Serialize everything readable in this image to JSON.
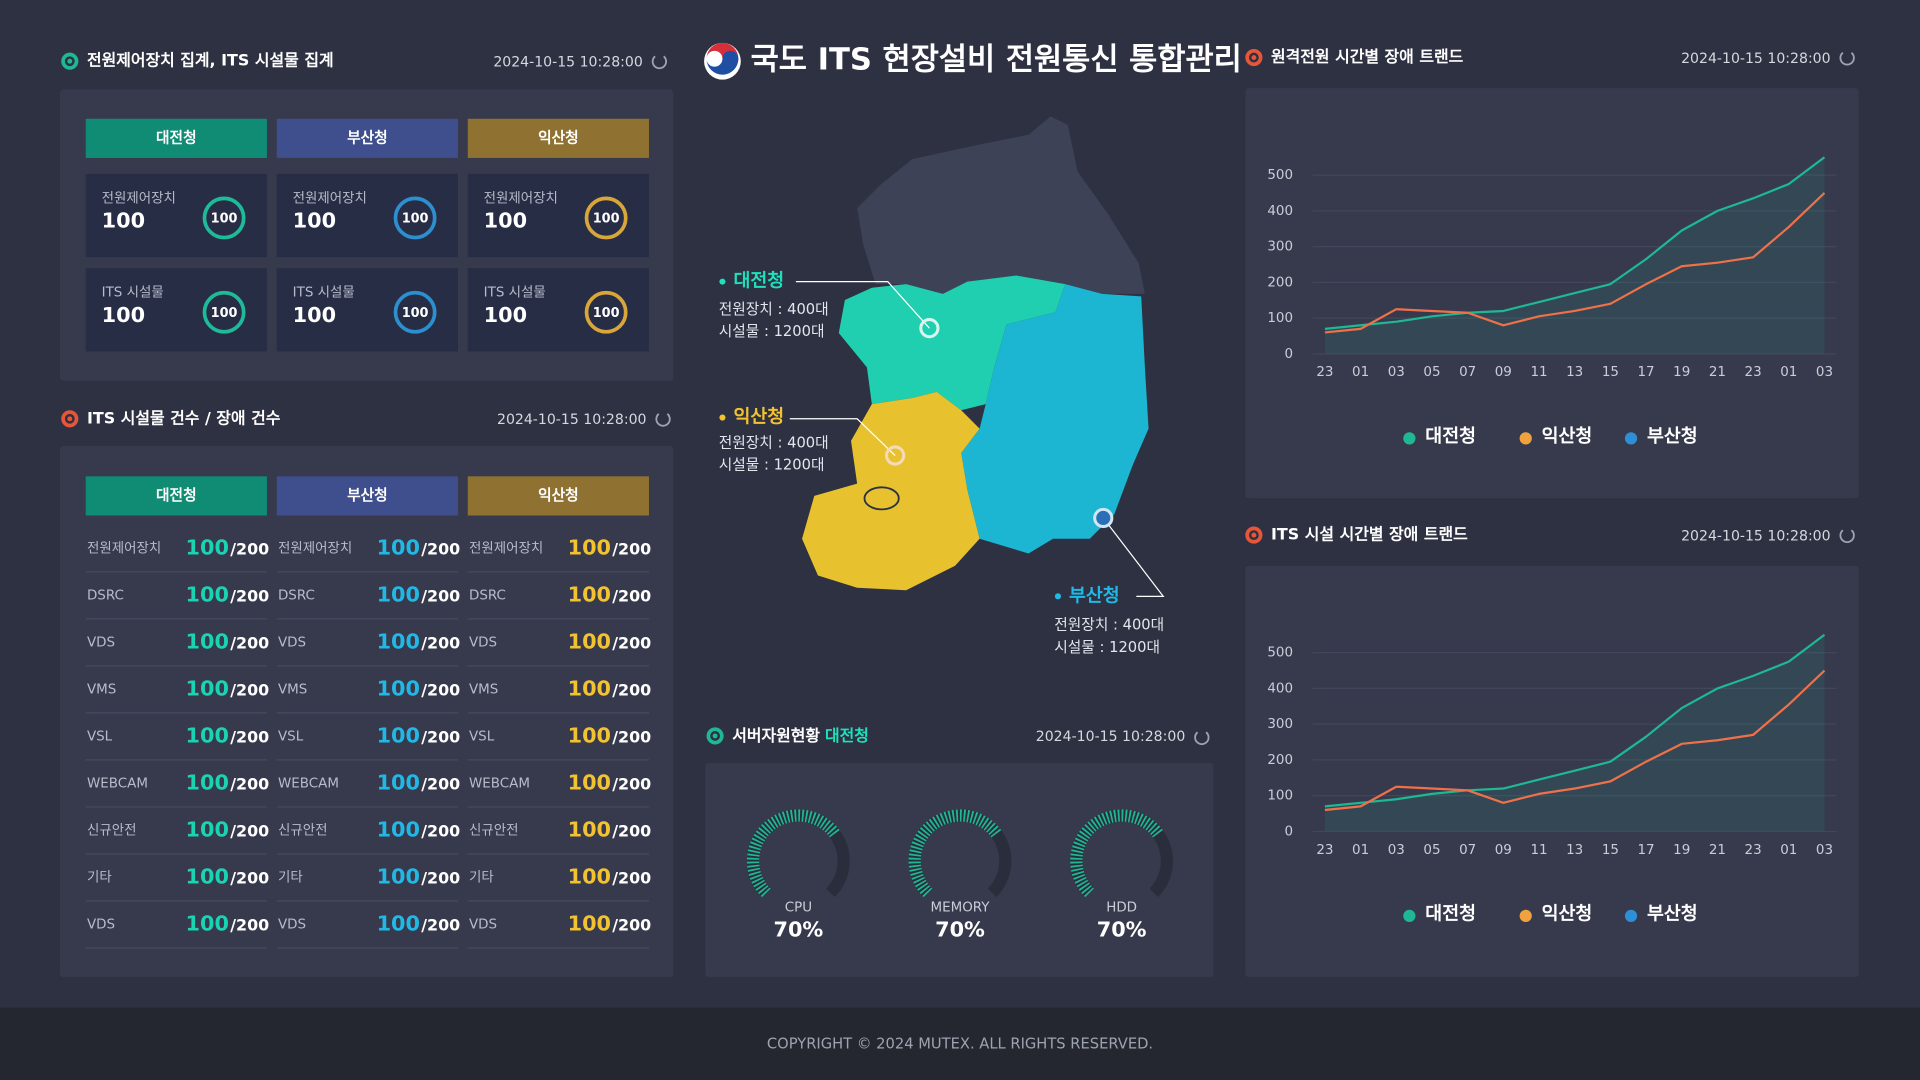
{
  "header": {
    "title": "국도 ITS 현장설비 전원통신 통합관리"
  },
  "summary_panel": {
    "title": "전원제어장치 집계, ITS 시설물 집계",
    "timestamp": "2024-10-15 10:28:00",
    "agencies": [
      {
        "name": "대전청",
        "items": [
          {
            "label": "전원제어장치",
            "value": 100,
            "ring": 100
          },
          {
            "label": "ITS 시설물",
            "value": 100,
            "ring": 100
          }
        ]
      },
      {
        "name": "부산청",
        "items": [
          {
            "label": "전원제어장치",
            "value": 100,
            "ring": 100
          },
          {
            "label": "ITS 시설물",
            "value": 100,
            "ring": 100
          }
        ]
      },
      {
        "name": "익산청",
        "items": [
          {
            "label": "전원제어장치",
            "value": 100,
            "ring": 100
          },
          {
            "label": "ITS 시설물",
            "value": 100,
            "ring": 100
          }
        ]
      }
    ]
  },
  "facility_panel": {
    "title": "ITS 시설물 건수 / 장애 건수",
    "timestamp": "2024-10-15 10:28:00",
    "agencies": [
      {
        "name": "대전청",
        "rows": [
          {
            "label": "전원제어장치",
            "value": 100,
            "total": "/200"
          },
          {
            "label": "DSRC",
            "value": 100,
            "total": "/200"
          },
          {
            "label": "VDS",
            "value": 100,
            "total": "/200"
          },
          {
            "label": "VMS",
            "value": 100,
            "total": "/200"
          },
          {
            "label": "VSL",
            "value": 100,
            "total": "/200"
          },
          {
            "label": "WEBCAM",
            "value": 100,
            "total": "/200"
          },
          {
            "label": "신규안전",
            "value": 100,
            "total": "/200"
          },
          {
            "label": "기타",
            "value": 100,
            "total": "/200"
          },
          {
            "label": "VDS",
            "value": 100,
            "total": "/200"
          }
        ]
      },
      {
        "name": "부산청",
        "rows": [
          {
            "label": "전원제어장치",
            "value": 100,
            "total": "/200"
          },
          {
            "label": "DSRC",
            "value": 100,
            "total": "/200"
          },
          {
            "label": "VDS",
            "value": 100,
            "total": "/200"
          },
          {
            "label": "VMS",
            "value": 100,
            "total": "/200"
          },
          {
            "label": "VSL",
            "value": 100,
            "total": "/200"
          },
          {
            "label": "WEBCAM",
            "value": 100,
            "total": "/200"
          },
          {
            "label": "신규안전",
            "value": 100,
            "total": "/200"
          },
          {
            "label": "기타",
            "value": 100,
            "total": "/200"
          },
          {
            "label": "VDS",
            "value": 100,
            "total": "/200"
          }
        ]
      },
      {
        "name": "익산청",
        "rows": [
          {
            "label": "전원제어장치",
            "value": 100,
            "total": "/200"
          },
          {
            "label": "DSRC",
            "value": 100,
            "total": "/200"
          },
          {
            "label": "VDS",
            "value": 100,
            "total": "/200"
          },
          {
            "label": "VMS",
            "value": 100,
            "total": "/200"
          },
          {
            "label": "VSL",
            "value": 100,
            "total": "/200"
          },
          {
            "label": "WEBCAM",
            "value": 100,
            "total": "/200"
          },
          {
            "label": "신규안전",
            "value": 100,
            "total": "/200"
          },
          {
            "label": "기타",
            "value": 100,
            "total": "/200"
          },
          {
            "label": "VDS",
            "value": 100,
            "total": "/200"
          }
        ]
      }
    ]
  },
  "map": {
    "regions": [
      {
        "name": "대전청",
        "lines": [
          "전원장치 : 400대",
          "시설물 : 1200대"
        ]
      },
      {
        "name": "익산청",
        "lines": [
          "전원장치 : 400대",
          "시설물 : 1200대"
        ]
      },
      {
        "name": "부산청",
        "lines": [
          "전원장치 : 400대",
          "시설물 : 1200대"
        ]
      }
    ]
  },
  "server_panel": {
    "title": "서버자원현황",
    "agency": "대전청",
    "timestamp": "2024-10-15 10:28:00",
    "gauges": [
      {
        "name": "CPU",
        "value": 70,
        "value_label": "70%"
      },
      {
        "name": "MEMORY",
        "value": 70,
        "value_label": "70%"
      },
      {
        "name": "HDD",
        "value": 70,
        "value_label": "70%"
      }
    ]
  },
  "chart_data": [
    {
      "type": "line",
      "title": "원격전원 시간별 장애 트랜드",
      "timestamp": "2024-10-15 10:28:00",
      "categories": [
        "23",
        "01",
        "03",
        "05",
        "07",
        "09",
        "11",
        "13",
        "15",
        "17",
        "19",
        "21",
        "23",
        "01",
        "03"
      ],
      "ylim": [
        0,
        600
      ],
      "yticks": [
        0,
        100,
        200,
        300,
        400,
        500
      ],
      "grid": true,
      "series": [
        {
          "name": "대전청",
          "color": "#1fb894",
          "values": [
            70,
            80,
            90,
            105,
            115,
            120,
            145,
            170,
            195,
            265,
            345,
            400,
            435,
            475,
            550
          ]
        },
        {
          "name": "익산청",
          "color": "#f0a23e",
          "line_color": "#f0704a",
          "values": [
            60,
            70,
            125,
            120,
            115,
            80,
            105,
            120,
            140,
            195,
            245,
            255,
            270,
            355,
            450
          ]
        },
        {
          "name": "부산청",
          "color": "#2e8fd6",
          "values": [
            null,
            null,
            null,
            null,
            null,
            null,
            null,
            null,
            null,
            null,
            null,
            null,
            null,
            null,
            null
          ]
        }
      ]
    },
    {
      "type": "line",
      "title": "ITS 시설 시간별 장애 트랜드",
      "timestamp": "2024-10-15 10:28:00",
      "categories": [
        "23",
        "01",
        "03",
        "05",
        "07",
        "09",
        "11",
        "13",
        "15",
        "17",
        "19",
        "21",
        "23",
        "01",
        "03"
      ],
      "ylim": [
        0,
        600
      ],
      "yticks": [
        0,
        100,
        200,
        300,
        400,
        500
      ],
      "grid": true,
      "series": [
        {
          "name": "대전청",
          "color": "#1fb894",
          "values": [
            70,
            80,
            90,
            105,
            115,
            120,
            145,
            170,
            195,
            265,
            345,
            400,
            435,
            475,
            550
          ]
        },
        {
          "name": "익산청",
          "color": "#f0a23e",
          "line_color": "#f0704a",
          "values": [
            60,
            70,
            125,
            120,
            115,
            80,
            105,
            120,
            140,
            195,
            245,
            255,
            270,
            355,
            450
          ]
        },
        {
          "name": "부산청",
          "color": "#2e8fd6",
          "values": [
            null,
            null,
            null,
            null,
            null,
            null,
            null,
            null,
            null,
            null,
            null,
            null,
            null,
            null,
            null
          ]
        }
      ]
    }
  ],
  "footer": {
    "text": "COPYRIGHT © 2024 MUTEX.  ALL RIGHTS RESERVED."
  }
}
